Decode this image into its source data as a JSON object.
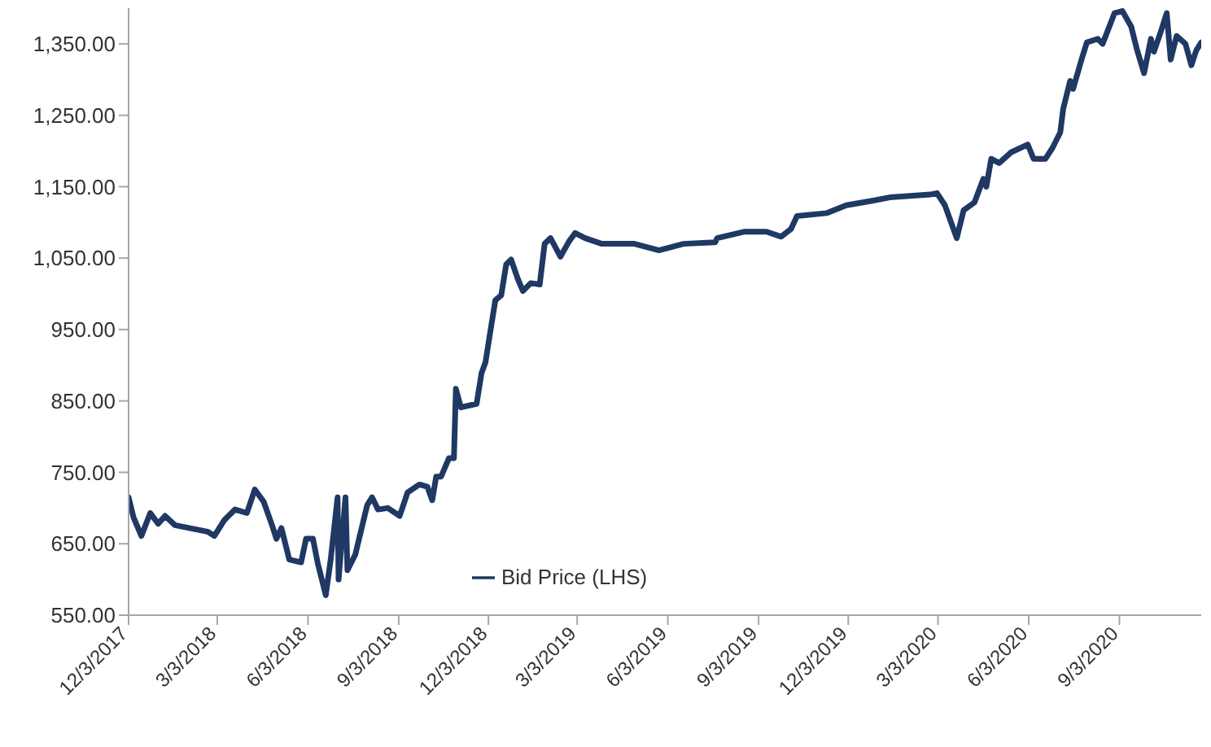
{
  "chart_data": {
    "type": "line",
    "legend": "bottom",
    "marker": "none",
    "grid": false,
    "xlim": [
      "2017-12-03",
      "2020-11-25"
    ],
    "xticks": [
      {
        "value": "2017-12-03",
        "label": "12/3/2017"
      },
      {
        "value": "2018-03-03",
        "label": "3/3/2018"
      },
      {
        "value": "2018-06-03",
        "label": "6/3/2018"
      },
      {
        "value": "2018-09-03",
        "label": "9/3/2018"
      },
      {
        "value": "2018-12-03",
        "label": "12/3/2018"
      },
      {
        "value": "2019-03-03",
        "label": "3/3/2019"
      },
      {
        "value": "2019-06-03",
        "label": "6/3/2019"
      },
      {
        "value": "2019-09-03",
        "label": "9/3/2019"
      },
      {
        "value": "2019-12-03",
        "label": "12/3/2019"
      },
      {
        "value": "2020-03-03",
        "label": "3/3/2020"
      },
      {
        "value": "2020-06-03",
        "label": "6/3/2020"
      },
      {
        "value": "2020-09-03",
        "label": "9/3/2020"
      }
    ],
    "ylim": [
      550,
      1400
    ],
    "yticks": [
      {
        "value": 550,
        "label": "550.00"
      },
      {
        "value": 650,
        "label": "650.00"
      },
      {
        "value": 750,
        "label": "750.00"
      },
      {
        "value": 850,
        "label": "850.00"
      },
      {
        "value": 950,
        "label": "950.00"
      },
      {
        "value": 1050,
        "label": "1,050.00"
      },
      {
        "value": 1150,
        "label": "1,150.00"
      },
      {
        "value": 1250,
        "label": "1,250.00"
      },
      {
        "value": 1350,
        "label": "1,350.00"
      }
    ],
    "x": [
      "2017-12-03",
      "2017-12-08",
      "2017-12-16",
      "2017-12-25",
      "2018-01-02",
      "2018-01-09",
      "2018-01-19",
      "2018-02-21",
      "2018-02-28",
      "2018-03-10",
      "2018-03-21",
      "2018-04-02",
      "2018-04-10",
      "2018-04-19",
      "2018-04-27",
      "2018-05-02",
      "2018-05-07",
      "2018-05-15",
      "2018-05-27",
      "2018-06-01",
      "2018-06-08",
      "2018-06-13",
      "2018-06-21",
      "2018-06-26",
      "2018-07-03",
      "2018-07-04",
      "2018-07-11",
      "2018-07-13",
      "2018-07-21",
      "2018-08-02",
      "2018-08-07",
      "2018-08-13",
      "2018-08-23",
      "2018-09-04",
      "2018-09-12",
      "2018-09-24",
      "2018-10-02",
      "2018-10-07",
      "2018-10-11",
      "2018-10-16",
      "2018-10-24",
      "2018-10-29",
      "2018-10-31",
      "2018-11-05",
      "2018-11-21",
      "2018-11-26",
      "2018-11-30",
      "2018-12-05",
      "2018-12-10",
      "2018-12-16",
      "2018-12-21",
      "2018-12-26",
      "2019-01-02",
      "2019-01-07",
      "2019-01-15",
      "2019-01-24",
      "2019-01-29",
      "2019-02-04",
      "2019-02-14",
      "2019-02-23",
      "2019-03-01",
      "2019-03-11",
      "2019-03-28",
      "2019-04-09",
      "2019-04-30",
      "2019-05-25",
      "2019-06-19",
      "2019-07-21",
      "2019-07-23",
      "2019-08-20",
      "2019-09-11",
      "2019-09-26",
      "2019-10-06",
      "2019-10-12",
      "2019-11-11",
      "2019-12-01",
      "2019-12-26",
      "2020-01-14",
      "2020-02-24",
      "2020-03-02",
      "2020-03-10",
      "2020-03-22",
      "2020-03-29",
      "2020-04-09",
      "2020-04-18",
      "2020-04-21",
      "2020-04-26",
      "2020-05-04",
      "2020-05-16",
      "2020-06-02",
      "2020-06-08",
      "2020-06-20",
      "2020-06-27",
      "2020-07-05",
      "2020-07-08",
      "2020-07-15",
      "2020-07-18",
      "2020-07-27",
      "2020-08-01",
      "2020-08-12",
      "2020-08-17",
      "2020-08-29",
      "2020-09-06",
      "2020-09-15",
      "2020-09-21",
      "2020-09-28",
      "2020-10-05",
      "2020-10-08",
      "2020-10-15",
      "2020-10-21",
      "2020-10-25",
      "2020-10-31",
      "2020-11-09",
      "2020-11-15",
      "2020-11-20",
      "2020-11-25"
    ],
    "series": [
      {
        "name": "Bid Price (LHS)",
        "color": "#1f3864",
        "values": [
          715,
          687,
          661,
          693,
          678,
          689,
          676,
          667,
          661,
          683,
          698,
          693,
          726,
          709,
          678,
          657,
          672,
          628,
          624,
          657,
          657,
          622,
          578,
          628,
          715,
          600,
          715,
          613,
          635,
          704,
          715,
          698,
          700,
          689,
          722,
          733,
          730,
          711,
          744,
          744,
          770,
          770,
          867,
          841,
          846,
          889,
          904,
          948,
          991,
          998,
          1041,
          1048,
          1020,
          1004,
          1015,
          1013,
          1070,
          1078,
          1052,
          1074,
          1085,
          1078,
          1070,
          1070,
          1070,
          1061,
          1070,
          1072,
          1078,
          1087,
          1087,
          1080,
          1091,
          1109,
          1113,
          1124,
          1130,
          1135,
          1139,
          1141,
          1124,
          1078,
          1117,
          1128,
          1161,
          1150,
          1189,
          1183,
          1198,
          1209,
          1189,
          1189,
          1204,
          1226,
          1259,
          1298,
          1287,
          1330,
          1352,
          1357,
          1350,
          1393,
          1396,
          1374,
          1341,
          1309,
          1357,
          1339,
          1367,
          1393,
          1328,
          1361,
          1350,
          1320,
          1341,
          1352
        ]
      }
    ]
  }
}
